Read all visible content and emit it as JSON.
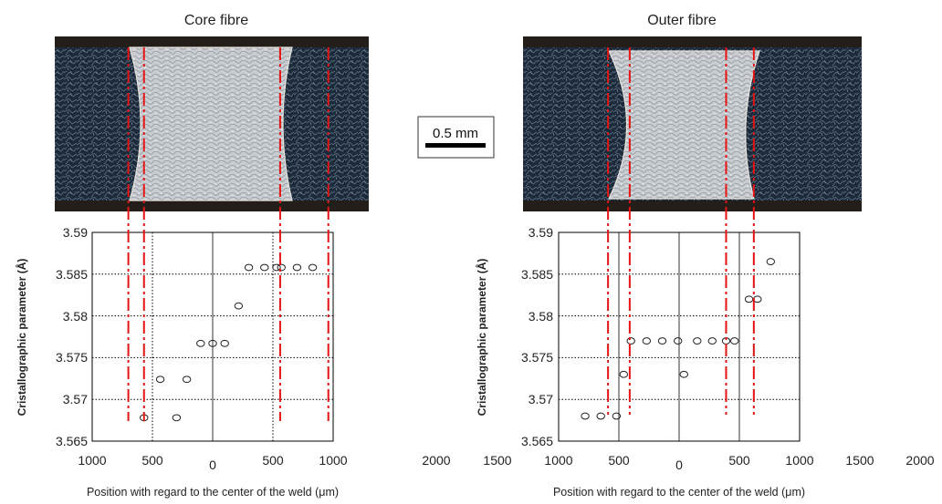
{
  "colors": {
    "boundary_lines": "#e41414",
    "markers": "#222222",
    "grid": "#000000"
  },
  "scale_bar": {
    "label": "0.5 mm"
  },
  "chart_data": [
    {
      "type": "scatter",
      "title": "Core fibre",
      "xlabel": "Position with regard to the center of the weld (μm)",
      "ylabel": "Cristallographic parameter (Å)",
      "ylim": [
        3.565,
        3.59
      ],
      "x_ticks": [
        "1000",
        "500",
        "0",
        "500",
        "1000"
      ],
      "y_ticks": [
        "3.565",
        "3.57",
        "3.575",
        "3.58",
        "3.585",
        "3.59"
      ],
      "grid": "dotted",
      "series": [
        {
          "x": [
            -570,
            -435,
            -300,
            -215,
            -100,
            0,
            100,
            215,
            300,
            430,
            530,
            570,
            700,
            830
          ],
          "y": [
            3.5678,
            3.5724,
            3.5678,
            3.5724,
            3.5767,
            3.5767,
            3.5767,
            3.5812,
            3.5858,
            3.5858,
            3.5858,
            3.5858,
            3.5858,
            3.5858
          ]
        }
      ],
      "boundary_lines_x": [
        -700,
        -570,
        560,
        960
      ]
    },
    {
      "type": "scatter",
      "title": "Outer fibre",
      "xlabel": "Position with regard to the center of the weld (μm)",
      "ylabel": "Cristallographic parameter (Å)",
      "ylim": [
        3.565,
        3.59
      ],
      "x_ticks": [
        "2000",
        "1500",
        "1000",
        "500",
        "0",
        "500",
        "1000",
        "1500",
        "2000"
      ],
      "y_ticks": [
        "3.565",
        "3.57",
        "3.575",
        "3.58",
        "3.585",
        "3.59"
      ],
      "grid": "dotted",
      "series": [
        {
          "x": [
            -780,
            -650,
            -520,
            -460,
            -400,
            -270,
            -140,
            -10,
            40,
            150,
            275,
            390,
            460,
            580,
            650,
            760
          ],
          "y": [
            3.568,
            3.568,
            3.568,
            3.573,
            3.577,
            3.577,
            3.577,
            3.577,
            3.573,
            3.577,
            3.577,
            3.577,
            3.577,
            3.582,
            3.582,
            3.5865
          ]
        }
      ],
      "boundary_lines_x": [
        -590,
        -410,
        390,
        620
      ]
    }
  ]
}
